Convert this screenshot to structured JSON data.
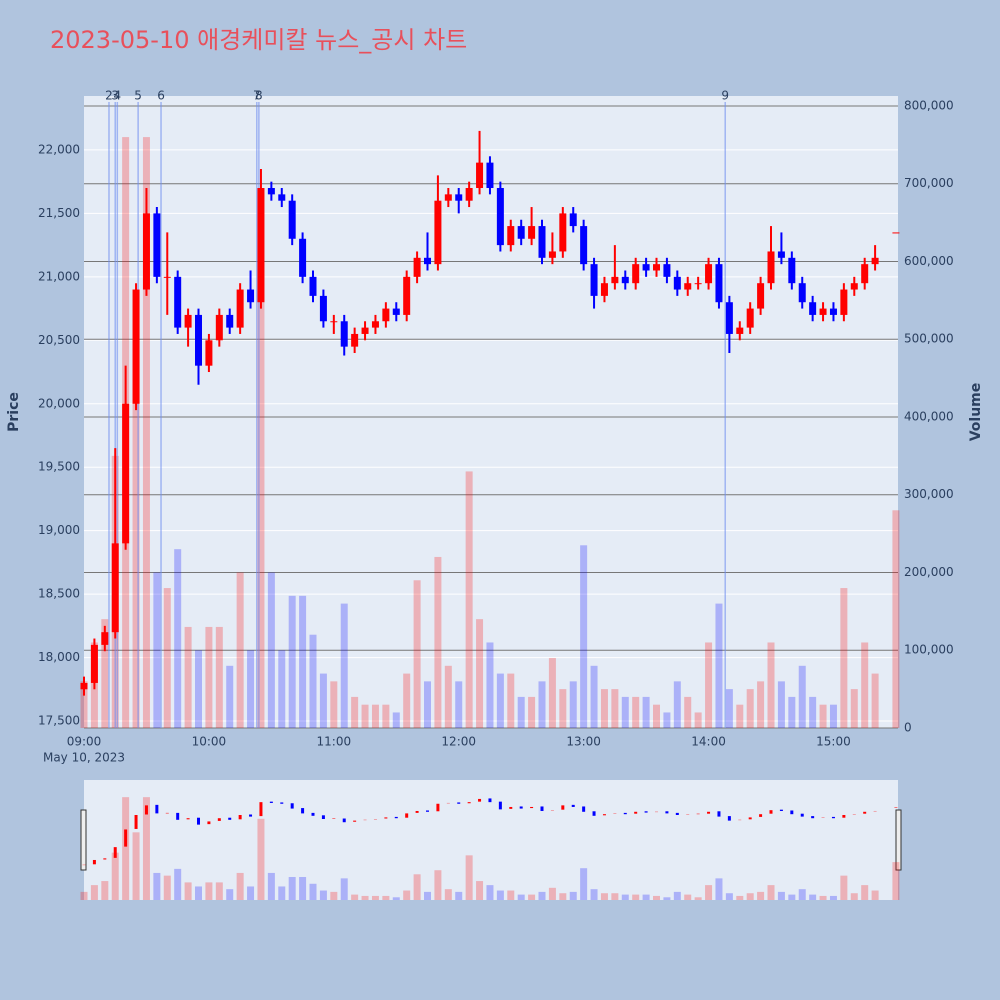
{
  "chart_data": {
    "type": "candlestick",
    "title": "2023-05-10 애경케미칼 뉴스_공시 차트",
    "y_title": "Price",
    "y2_title": "Volume",
    "x_date_label": "May 10, 2023",
    "xlim": [
      "2023-05-10 09:00",
      "2023-05-10 15:31"
    ],
    "xticks": [
      {
        "value": "2023-05-10 09:00",
        "label": "09:00"
      },
      {
        "value": "2023-05-10 10:00",
        "label": "10:00"
      },
      {
        "value": "2023-05-10 11:00",
        "label": "11:00"
      },
      {
        "value": "2023-05-10 12:00",
        "label": "12:00"
      },
      {
        "value": "2023-05-10 13:00",
        "label": "13:00"
      },
      {
        "value": "2023-05-10 14:00",
        "label": "14:00"
      },
      {
        "value": "2023-05-10 15:00",
        "label": "15:00"
      }
    ],
    "ylim": [
      17445,
      22425
    ],
    "yticks": [
      {
        "value": 17500,
        "label": "17,500"
      },
      {
        "value": 18000,
        "label": "18,000"
      },
      {
        "value": 18500,
        "label": "18,500"
      },
      {
        "value": 19000,
        "label": "19,000"
      },
      {
        "value": 19500,
        "label": "19,500"
      },
      {
        "value": 20000,
        "label": "20,000"
      },
      {
        "value": 20500,
        "label": "20,500"
      },
      {
        "value": 21000,
        "label": "21,000"
      },
      {
        "value": 21500,
        "label": "21,500"
      },
      {
        "value": 22000,
        "label": "22,000"
      }
    ],
    "y2lim": [
      0,
      812860
    ],
    "y2ticks": [
      0,
      {
        "value": 100000,
        "label": "100,000"
      },
      {
        "value": 200000,
        "label": "200,000"
      },
      {
        "value": 300000,
        "label": "300,000"
      },
      {
        "value": 400000,
        "label": "400,000"
      },
      {
        "value": 500000,
        "label": "500,000"
      },
      {
        "value": 600000,
        "label": "600,000"
      },
      {
        "value": 700000,
        "label": "700,000"
      },
      {
        "value": 800000,
        "label": "800,000"
      }
    ],
    "grid": true,
    "up_color": "#ff0000",
    "down_color": "#0000ff",
    "x": [
      "2023-05-10 09:00",
      "2023-05-10 09:05",
      "2023-05-10 09:10",
      "2023-05-10 09:15",
      "2023-05-10 09:20",
      "2023-05-10 09:25",
      "2023-05-10 09:30",
      "2023-05-10 09:35",
      "2023-05-10 09:40",
      "2023-05-10 09:45",
      "2023-05-10 09:50",
      "2023-05-10 09:55",
      "2023-05-10 10:00",
      "2023-05-10 10:05",
      "2023-05-10 10:10",
      "2023-05-10 10:15",
      "2023-05-10 10:20",
      "2023-05-10 10:25",
      "2023-05-10 10:30",
      "2023-05-10 10:35",
      "2023-05-10 10:40",
      "2023-05-10 10:45",
      "2023-05-10 10:50",
      "2023-05-10 10:55",
      "2023-05-10 11:00",
      "2023-05-10 11:05",
      "2023-05-10 11:10",
      "2023-05-10 11:15",
      "2023-05-10 11:20",
      "2023-05-10 11:25",
      "2023-05-10 11:30",
      "2023-05-10 11:35",
      "2023-05-10 11:40",
      "2023-05-10 11:45",
      "2023-05-10 11:50",
      "2023-05-10 11:55",
      "2023-05-10 12:00",
      "2023-05-10 12:05",
      "2023-05-10 12:10",
      "2023-05-10 12:15",
      "2023-05-10 12:20",
      "2023-05-10 12:25",
      "2023-05-10 12:30",
      "2023-05-10 12:35",
      "2023-05-10 12:40",
      "2023-05-10 12:45",
      "2023-05-10 12:50",
      "2023-05-10 12:55",
      "2023-05-10 13:00",
      "2023-05-10 13:05",
      "2023-05-10 13:10",
      "2023-05-10 13:15",
      "2023-05-10 13:20",
      "2023-05-10 13:25",
      "2023-05-10 13:30",
      "2023-05-10 13:35",
      "2023-05-10 13:40",
      "2023-05-10 13:45",
      "2023-05-10 13:50",
      "2023-05-10 13:55",
      "2023-05-10 14:00",
      "2023-05-10 14:05",
      "2023-05-10 14:10",
      "2023-05-10 14:15",
      "2023-05-10 14:20",
      "2023-05-10 14:25",
      "2023-05-10 14:30",
      "2023-05-10 14:35",
      "2023-05-10 14:40",
      "2023-05-10 14:45",
      "2023-05-10 14:50",
      "2023-05-10 14:55",
      "2023-05-10 15:00",
      "2023-05-10 15:05",
      "2023-05-10 15:10",
      "2023-05-10 15:15",
      "2023-05-10 15:20",
      "2023-05-10 15:30"
    ],
    "open": [
      17750,
      17800,
      18100,
      18200,
      18900,
      20000,
      20900,
      21500,
      21000,
      21000,
      20600,
      20700,
      20300,
      20500,
      20700,
      20600,
      20900,
      20800,
      21700,
      21650,
      21600,
      21300,
      21000,
      20850,
      20650,
      20650,
      20450,
      20550,
      20600,
      20650,
      20750,
      20700,
      21000,
      21150,
      21100,
      21600,
      21650,
      21600,
      21700,
      21900,
      21700,
      21250,
      21400,
      21300,
      21400,
      21150,
      21200,
      21500,
      21400,
      21100,
      20850,
      20950,
      21000,
      20950,
      21100,
      21050,
      21100,
      21000,
      20900,
      20950,
      20950,
      21100,
      20800,
      20550,
      20600,
      20750,
      20950,
      21200,
      21150,
      20950,
      20800,
      20700,
      20750,
      20700,
      20900,
      20950,
      21100,
      21350
    ],
    "high": [
      17850,
      18150,
      18250,
      19650,
      20300,
      20950,
      21700,
      21550,
      21350,
      21050,
      20750,
      20750,
      20550,
      20750,
      20750,
      20950,
      21050,
      21850,
      21750,
      21700,
      21650,
      21350,
      21050,
      20900,
      20700,
      20700,
      20600,
      20650,
      20700,
      20800,
      20800,
      21050,
      21200,
      21350,
      21800,
      21700,
      21700,
      21750,
      22150,
      21950,
      21750,
      21450,
      21450,
      21550,
      21450,
      21350,
      21550,
      21550,
      21450,
      21150,
      21000,
      21250,
      21050,
      21150,
      21150,
      21150,
      21150,
      21050,
      21000,
      21000,
      21150,
      21150,
      20850,
      20650,
      20800,
      21000,
      21400,
      21350,
      21200,
      21000,
      20850,
      20800,
      20800,
      20950,
      21000,
      21150,
      21250,
      21350
    ],
    "low": [
      17700,
      17750,
      18050,
      18150,
      18850,
      19950,
      20850,
      20950,
      20700,
      20550,
      20450,
      20150,
      20250,
      20450,
      20550,
      20550,
      20750,
      20750,
      21600,
      21550,
      21250,
      20950,
      20800,
      20600,
      20550,
      20380,
      20400,
      20500,
      20550,
      20600,
      20650,
      20650,
      20950,
      21050,
      21050,
      21550,
      21500,
      21550,
      21650,
      21650,
      21200,
      21200,
      21250,
      21250,
      21100,
      21100,
      21150,
      21350,
      21050,
      20750,
      20800,
      20900,
      20900,
      20900,
      21000,
      21000,
      20950,
      20850,
      20850,
      20900,
      20900,
      20750,
      20400,
      20500,
      20550,
      20700,
      20900,
      21100,
      20900,
      20750,
      20650,
      20650,
      20650,
      20650,
      20850,
      20900,
      21050,
      21350
    ],
    "close": [
      17800,
      18100,
      18200,
      18900,
      20000,
      20900,
      21500,
      21000,
      21000,
      20600,
      20700,
      20300,
      20500,
      20700,
      20600,
      20900,
      20800,
      21700,
      21650,
      21600,
      21300,
      21000,
      20850,
      20650,
      20650,
      20450,
      20550,
      20600,
      20650,
      20750,
      20700,
      21000,
      21150,
      21100,
      21600,
      21650,
      21600,
      21700,
      21900,
      21700,
      21250,
      21400,
      21300,
      21400,
      21150,
      21200,
      21500,
      21400,
      21100,
      20850,
      20950,
      21000,
      20950,
      21100,
      21050,
      21100,
      21000,
      20900,
      20950,
      20950,
      21100,
      20800,
      20550,
      20600,
      20750,
      20950,
      21200,
      21150,
      20950,
      20800,
      20700,
      20750,
      20700,
      20900,
      20950,
      21100,
      21150,
      21350
    ],
    "volume": [
      60000,
      110000,
      140000,
      350000,
      760000,
      500000,
      760000,
      200000,
      180000,
      230000,
      130000,
      100000,
      130000,
      130000,
      80000,
      200000,
      100000,
      600000,
      200000,
      100000,
      170000,
      170000,
      120000,
      70000,
      60000,
      160000,
      40000,
      30000,
      30000,
      30000,
      20000,
      70000,
      190000,
      60000,
      220000,
      80000,
      60000,
      330000,
      140000,
      110000,
      70000,
      70000,
      40000,
      40000,
      60000,
      90000,
      50000,
      60000,
      235000,
      80000,
      50000,
      50000,
      40000,
      40000,
      40000,
      30000,
      20000,
      60000,
      40000,
      20000,
      110000,
      160000,
      50000,
      30000,
      50000,
      60000,
      110000,
      60000,
      40000,
      80000,
      40000,
      30000,
      30000,
      180000,
      50000,
      110000,
      70000,
      280000
    ],
    "news": [
      {
        "label": "2",
        "x": "2023-05-10 09:12"
      },
      {
        "label": "3",
        "x": "2023-05-10 09:15"
      },
      {
        "label": "4",
        "x": "2023-05-10 09:16"
      },
      {
        "label": "5",
        "x": "2023-05-10 09:26"
      },
      {
        "label": "6",
        "x": "2023-05-10 09:37"
      },
      {
        "label": "7",
        "x": "2023-05-10 10:23"
      },
      {
        "label": "8",
        "x": "2023-05-10 10:24"
      },
      {
        "label": "9",
        "x": "2023-05-10 14:08"
      }
    ]
  }
}
